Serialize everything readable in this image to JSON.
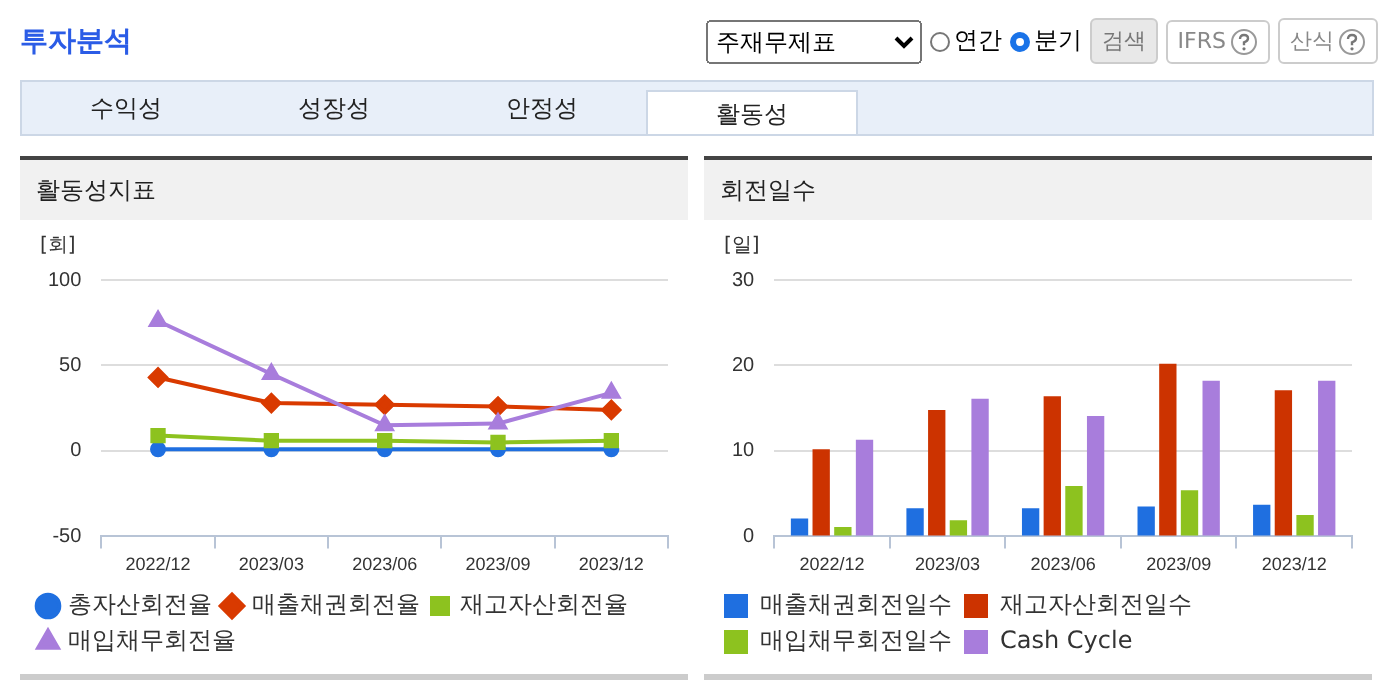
{
  "chart_data": [
    {
      "type": "other",
      "title": "투자분석",
      "annotations": [
        "주재무제표",
        "연간",
        "분기",
        "검색",
        "IFRS",
        "산식",
        "수익성",
        "성장성",
        "안정성",
        "활동성"
      ]
    },
    {
      "type": "line",
      "title": "활동성지표",
      "ylabel": "[회]",
      "categories": [
        "2022/12",
        "2023/03",
        "2023/06",
        "2023/09",
        "2023/12"
      ],
      "ylim": [
        -50,
        100
      ],
      "yticks": [
        -50,
        0,
        50,
        100
      ],
      "grid": "y",
      "legend": "bottom",
      "series": [
        {
          "name": "총자산회전율",
          "color": "#1f6fe0",
          "marker": "circle",
          "values": [
            1,
            1,
            1,
            1,
            1
          ]
        },
        {
          "name": "매출채권회전율",
          "color": "#d93a00",
          "marker": "diamond",
          "values": [
            43,
            28,
            27,
            26,
            24
          ]
        },
        {
          "name": "재고자산회전율",
          "color": "#8dc21f",
          "marker": "square",
          "values": [
            9,
            6,
            6,
            5,
            6
          ]
        },
        {
          "name": "매입채무회전율",
          "color": "#a87ddc",
          "marker": "triangle",
          "values": [
            76,
            45,
            15,
            16,
            34
          ]
        }
      ]
    },
    {
      "type": "bar",
      "title": "회전일수",
      "ylabel": "[일]",
      "categories": [
        "2022/12",
        "2023/03",
        "2023/06",
        "2023/09",
        "2023/12"
      ],
      "ylim": [
        0,
        30
      ],
      "yticks": [
        0,
        10,
        20,
        30
      ],
      "grid": "y",
      "legend": "bottom",
      "series": [
        {
          "name": "매출채권회전일수",
          "color": "#1f6fe0",
          "values": [
            2.1,
            3.3,
            3.3,
            3.5,
            3.7
          ]
        },
        {
          "name": "재고자산회전일수",
          "color": "#cc3300",
          "values": [
            10.2,
            14.8,
            16.4,
            20.2,
            17.1
          ]
        },
        {
          "name": "매입채무회전일수",
          "color": "#8dc21f",
          "values": [
            1.1,
            1.9,
            5.9,
            5.4,
            2.5
          ]
        },
        {
          "name": "Cash Cycle",
          "color": "#a87ddc",
          "values": [
            11.3,
            16.1,
            14.1,
            18.2,
            18.2
          ]
        }
      ]
    }
  ]
}
